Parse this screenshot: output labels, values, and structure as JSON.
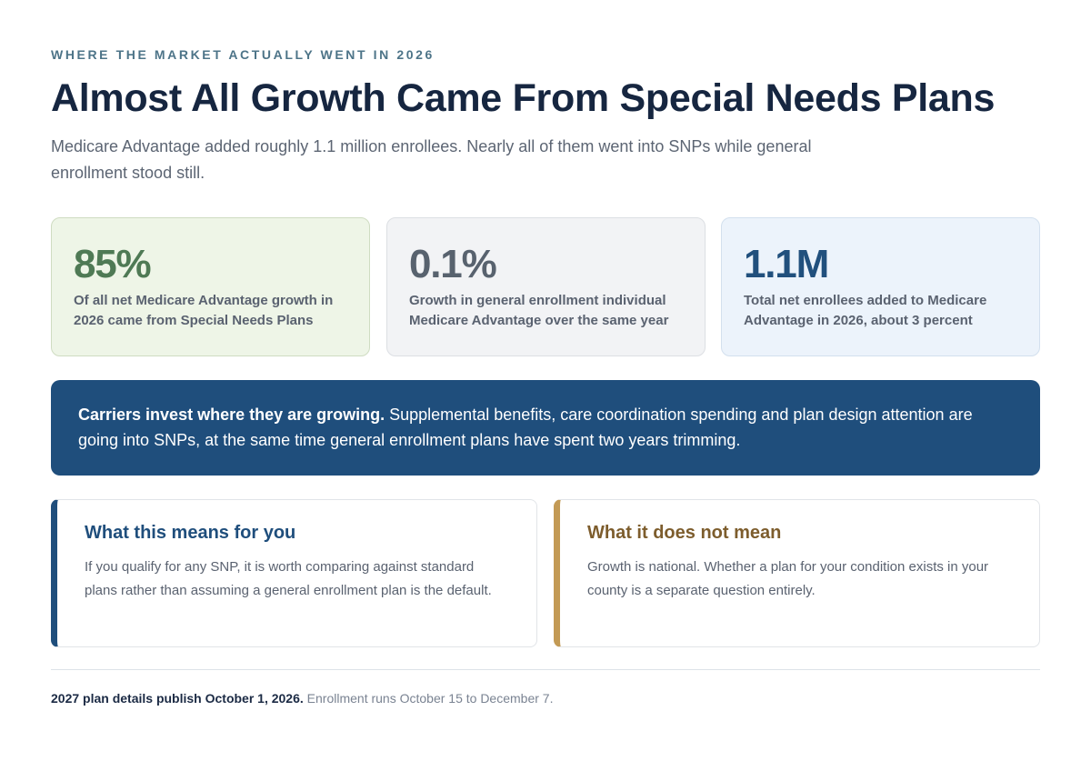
{
  "header": {
    "eyebrow": "WHERE THE MARKET ACTUALLY WENT IN 2026",
    "title": "Almost All Growth Came From Special Needs Plans",
    "subtitle": "Medicare Advantage added roughly 1.1 million enrollees. Nearly all of them went into SNPs while general enrollment stood still."
  },
  "stats": [
    {
      "value": "85%",
      "description": "Of all net Medicare Advantage growth in 2026 came from Special Needs Plans",
      "color": "#4f7a55"
    },
    {
      "value": "0.1%",
      "description": "Growth in general enrollment individual Medicare Advantage over the same year",
      "color": "#58626e"
    },
    {
      "value": "1.1M",
      "description": "Total net enrollees added to Medicare Advantage in 2026, about 3 percent",
      "color": "#21507d"
    }
  ],
  "banner": {
    "lead": "Carriers invest where they are growing.",
    "text": " Supplemental benefits, care coordination spending and plan design attention are going into SNPs, at the same time general enrollment plans have spent two years trimming.",
    "background": "#1f4e7c"
  },
  "cards": [
    {
      "title": "What this means for you",
      "text": "If you qualify for any SNP, it is worth comparing against standard plans rather than assuming a general enrollment plan is the default.",
      "accent": "#1f4e7c"
    },
    {
      "title": "What it does not mean",
      "text": "Growth is national. Whether a plan for your condition exists in your county is a separate question entirely.",
      "accent": "#c39a55"
    }
  ],
  "footer": {
    "bold": "2027 plan details publish October 1, 2026.",
    "text": " Enrollment runs October 15 to December 7."
  }
}
